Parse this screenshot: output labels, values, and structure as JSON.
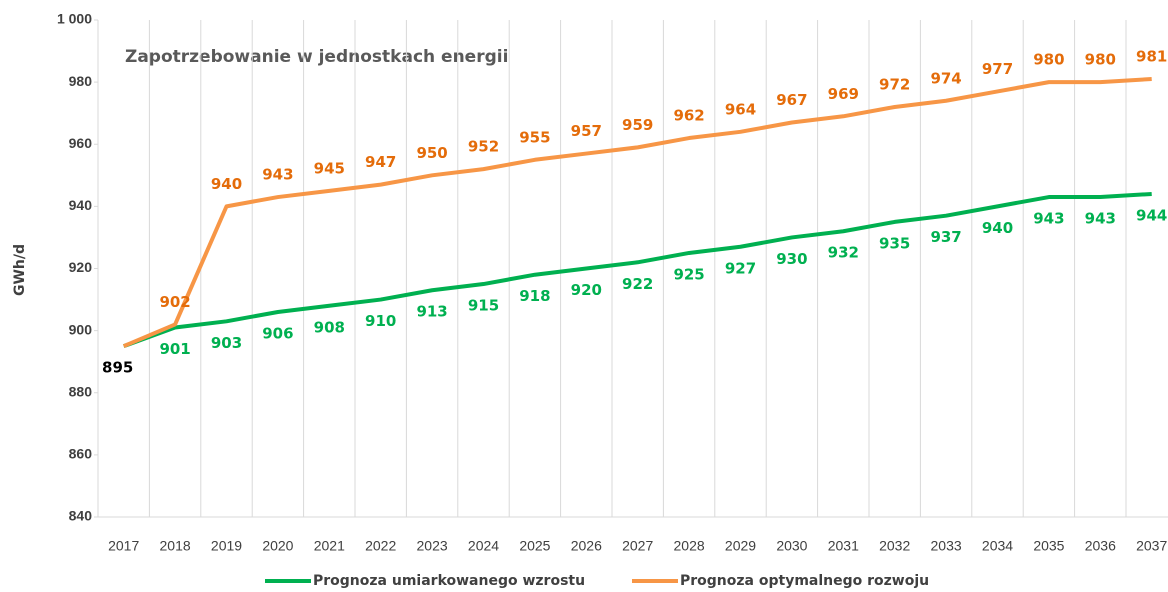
{
  "chart_data": {
    "type": "line",
    "title": "Zapotrzebowanie w jednostkach energii",
    "ylabel": "GWh/d",
    "categories": [
      "2017",
      "2018",
      "2019",
      "2020",
      "2021",
      "2022",
      "2023",
      "2024",
      "2025",
      "2026",
      "2027",
      "2028",
      "2029",
      "2030",
      "2031",
      "2032",
      "2033",
      "2034",
      "2035",
      "2036",
      "2037"
    ],
    "series": [
      {
        "name": "Prognoza umiarkowanego wzrostu",
        "color": "#00b050",
        "label_position": "below",
        "start_label_color": "#000000",
        "values": [
          895,
          901,
          903,
          906,
          908,
          910,
          913,
          915,
          918,
          920,
          922,
          925,
          927,
          930,
          932,
          935,
          937,
          940,
          943,
          943,
          944
        ]
      },
      {
        "name": "Prognoza optymalnego rozwoju",
        "color": "#f79646",
        "label_color": "#e46c0a",
        "label_position": "above",
        "show_first_label": false,
        "values": [
          895,
          902,
          940,
          943,
          945,
          947,
          950,
          952,
          955,
          957,
          959,
          962,
          964,
          967,
          969,
          972,
          974,
          977,
          980,
          980,
          981
        ]
      }
    ],
    "ylim": [
      840,
      1000
    ],
    "yticks": [
      840,
      860,
      880,
      900,
      920,
      940,
      960,
      980,
      {
        "value": 1000,
        "label": "1 000"
      }
    ],
    "grid": "vertical",
    "legend": "bottom"
  }
}
